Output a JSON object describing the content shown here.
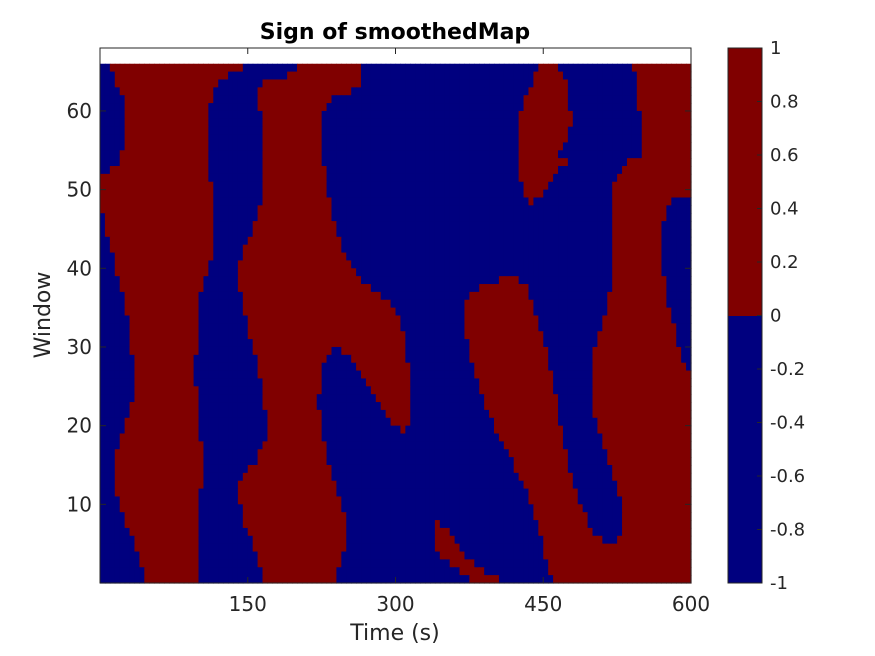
{
  "chart_data": {
    "type": "heatmap",
    "title": "Sign of smoothedMap",
    "xlabel": "Time (s)",
    "ylabel": "Window",
    "xlim": [
      0,
      600
    ],
    "ylim": [
      0,
      68
    ],
    "grid_extent": {
      "x": [
        0,
        600
      ],
      "y": [
        0,
        66
      ]
    },
    "x_ticks": [
      150,
      300,
      450,
      600
    ],
    "y_ticks": [
      10,
      20,
      30,
      40,
      50,
      60
    ],
    "colorbar": {
      "ticks": [
        1,
        0.8,
        0.6,
        0.4,
        0.2,
        0,
        -0.2,
        -0.4,
        -0.6,
        -0.8,
        -1
      ],
      "range": [
        -1,
        1
      ],
      "levels": [
        {
          "value": 1,
          "color": "#800000"
        },
        {
          "value": -1,
          "color": "#00007f"
        }
      ]
    },
    "values": "binary sign field: +1 (dark red) / -1 (dark blue) over time x window",
    "regions": [
      {
        "value": -1,
        "x_range": [
          280,
          420
        ],
        "y_range": [
          0,
          66
        ],
        "note": "broad central negative band"
      },
      {
        "value": 1,
        "x_range": [
          0,
          80
        ],
        "y_range": [
          0,
          30
        ],
        "note": "lower-left positive block"
      },
      {
        "value": 1,
        "x_range": [
          440,
          600
        ],
        "y_range": [
          0,
          55
        ],
        "note": "right positive region"
      }
    ]
  }
}
